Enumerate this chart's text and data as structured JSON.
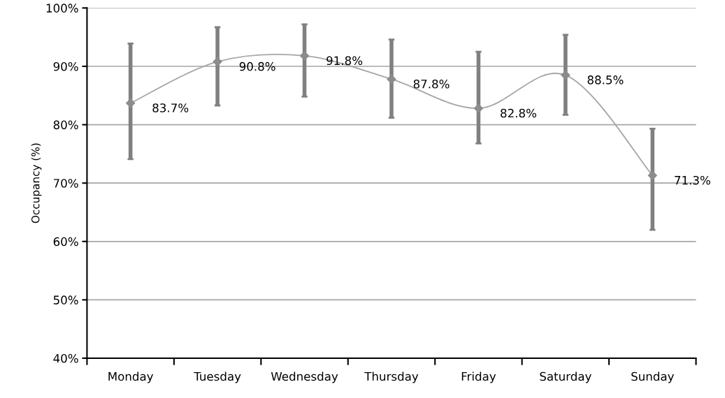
{
  "chart_data": {
    "type": "line",
    "ylabel": "Occupancy (%)",
    "categories": [
      "Monday",
      "Tuesday",
      "Wednesday",
      "Thursday",
      "Friday",
      "Saturday",
      "Sunday"
    ],
    "series": [
      {
        "color": "#a6a6a6",
        "values": [
          83.7,
          90.8,
          91.8,
          87.8,
          82.8,
          88.5,
          71.3
        ],
        "errors": [
          [
            74.1,
            93.9
          ],
          [
            83.3,
            96.7
          ],
          [
            84.8,
            97.2
          ],
          [
            81.2,
            94.6
          ],
          [
            76.8,
            92.5
          ],
          [
            81.7,
            95.4
          ],
          [
            62.0,
            79.3
          ]
        ],
        "value_labels": [
          "83.7%",
          "90.8%",
          "91.8%",
          "87.8%",
          "82.8%",
          "88.5%",
          "71.3%"
        ]
      }
    ],
    "ylim": [
      40,
      100
    ],
    "yticks": [
      {
        "value": 40,
        "label": "40%"
      },
      {
        "value": 50,
        "label": "50%"
      },
      {
        "value": 60,
        "label": "60%"
      },
      {
        "value": 70,
        "label": "70%"
      },
      {
        "value": 80,
        "label": "80%"
      },
      {
        "value": 90,
        "label": "90%"
      },
      {
        "value": 100,
        "label": "100%"
      }
    ],
    "grid": "y",
    "marker": "diamond",
    "line_style": "solid"
  }
}
